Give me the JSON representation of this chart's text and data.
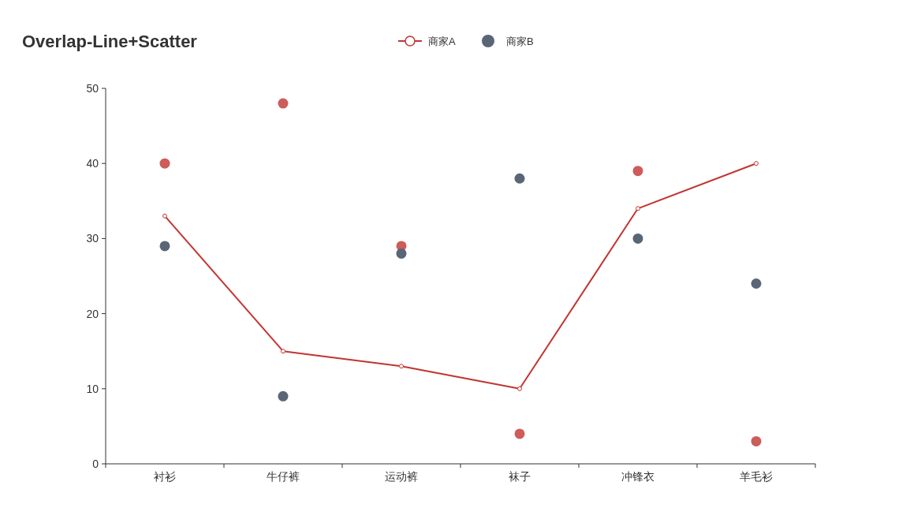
{
  "chart_data": {
    "type": "line",
    "title": "Overlap-Line+Scatter",
    "categories": [
      "衬衫",
      "牛仔裤",
      "运动裤",
      "袜子",
      "冲锋衣",
      "羊毛衫"
    ],
    "series": [
      {
        "name": "商家A",
        "color": "#c23531",
        "marker": "circle",
        "values": [
          33,
          15,
          13,
          10,
          34,
          40
        ]
      },
      {
        "type": "scatter",
        "color": "#cd5c5a",
        "values": [
          40,
          48,
          29,
          4,
          39,
          3
        ]
      },
      {
        "name": "商家B",
        "type": "scatter",
        "color": "#586676",
        "values": [
          29,
          9,
          28,
          38,
          30,
          24
        ]
      }
    ],
    "ylim": [
      0,
      50
    ],
    "yticks": [
      0,
      10,
      20,
      30,
      40,
      50
    ],
    "grid": false,
    "legend": "top"
  }
}
